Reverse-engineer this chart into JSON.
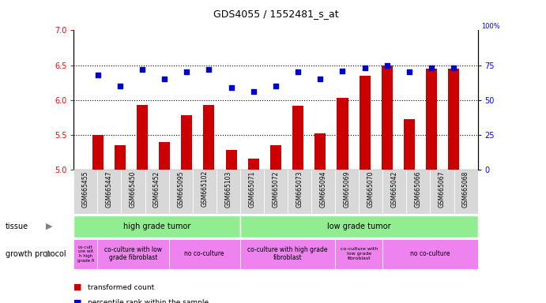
{
  "title": "GDS4055 / 1552481_s_at",
  "samples": [
    "GSM665455",
    "GSM665447",
    "GSM665450",
    "GSM665452",
    "GSM665095",
    "GSM665102",
    "GSM665103",
    "GSM665071",
    "GSM665072",
    "GSM665073",
    "GSM665094",
    "GSM665069",
    "GSM665070",
    "GSM665042",
    "GSM665066",
    "GSM665067",
    "GSM665068"
  ],
  "bar_values": [
    5.5,
    5.35,
    5.93,
    5.4,
    5.78,
    5.93,
    5.28,
    5.16,
    5.35,
    5.92,
    5.52,
    6.03,
    6.35,
    6.5,
    5.73,
    6.45,
    6.45
  ],
  "dot_values": [
    68,
    60,
    72,
    65,
    70,
    72,
    59,
    56,
    60,
    70,
    65,
    71,
    73,
    75,
    70,
    73,
    73
  ],
  "ylim_left": [
    5.0,
    7.0
  ],
  "ylim_right": [
    0,
    100
  ],
  "yticks_left": [
    5.0,
    5.5,
    6.0,
    6.5,
    7.0
  ],
  "yticks_right": [
    0,
    25,
    50,
    75
  ],
  "hlines": [
    5.5,
    6.0,
    6.5
  ],
  "bar_color": "#cc0000",
  "dot_color": "#0000cc",
  "tissue_color": "#90ee90",
  "growth_color": "#ee82ee",
  "background_color": "#ffffff",
  "xticklabel_bg": "#d8d8d8"
}
